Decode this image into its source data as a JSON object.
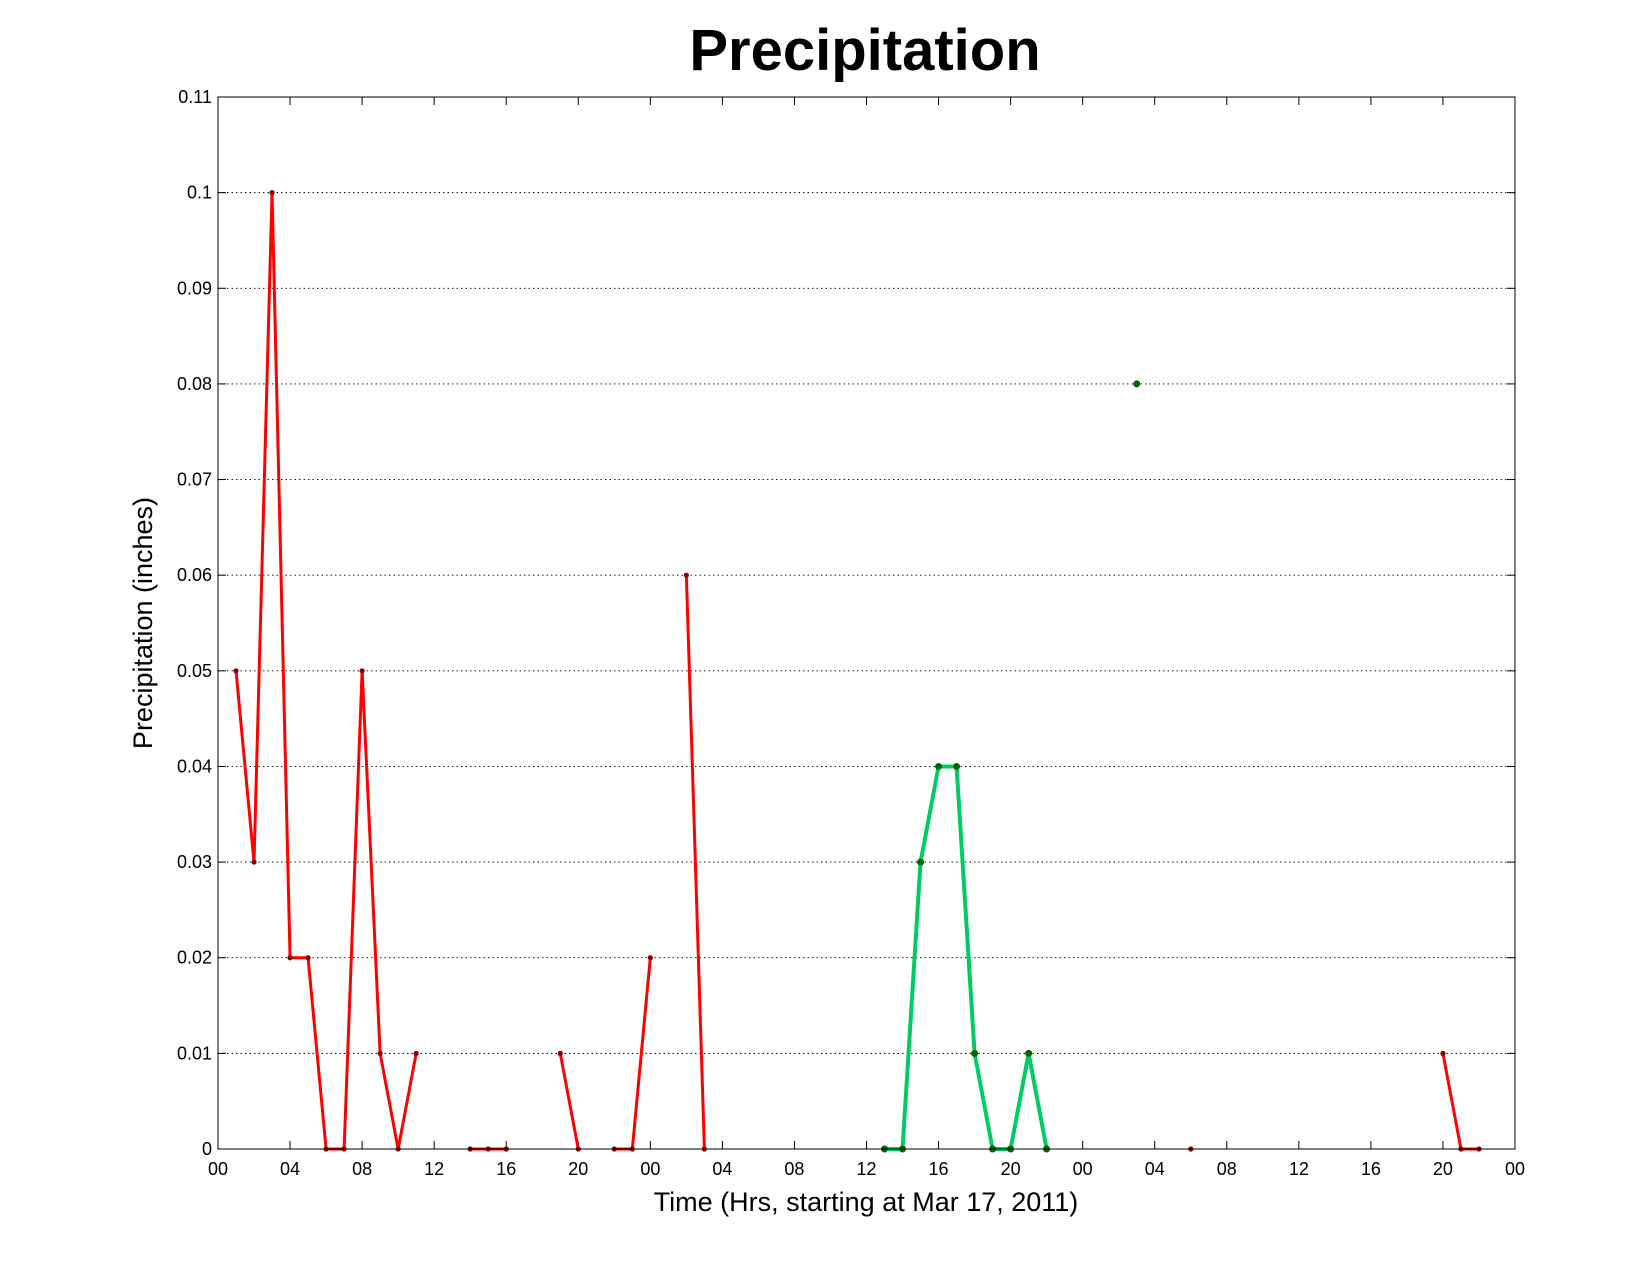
{
  "chart_data": {
    "type": "line",
    "title": "Precipitation",
    "xlabel": "Time (Hrs, starting at Mar 17, 2011)",
    "ylabel": "Precipitation (inches)",
    "xlim_hours": [
      0,
      72
    ],
    "ylim": [
      0,
      0.11
    ],
    "grid": "y-dotted",
    "yticks": [
      0,
      0.01,
      0.02,
      0.03,
      0.04,
      0.05,
      0.06,
      0.07,
      0.08,
      0.09,
      0.1,
      0.11
    ],
    "ytick_labels": [
      "0",
      "0.01",
      "0.02",
      "0.03",
      "0.04",
      "0.05",
      "0.06",
      "0.07",
      "0.08",
      "0.09",
      "0.1",
      "0.11"
    ],
    "xticks_hours": [
      0,
      4,
      8,
      12,
      16,
      20,
      24,
      28,
      32,
      36,
      40,
      44,
      48,
      52,
      56,
      60,
      64,
      68,
      72
    ],
    "xtick_labels": [
      "00",
      "04",
      "08",
      "12",
      "16",
      "20",
      "00",
      "04",
      "08",
      "12",
      "16",
      "20",
      "00",
      "04",
      "08",
      "12",
      "16",
      "20",
      "00"
    ],
    "series": [
      {
        "color": "#ff0000",
        "marker_color": "#8b0000",
        "segments": [
          [
            [
              1,
              0.05
            ],
            [
              2,
              0.03
            ],
            [
              3,
              0.1
            ],
            [
              4,
              0.02
            ],
            [
              5,
              0.02
            ],
            [
              6,
              0
            ],
            [
              7,
              0
            ],
            [
              8,
              0.05
            ],
            [
              9,
              0.01
            ],
            [
              10,
              0
            ],
            [
              11,
              0.01
            ]
          ],
          [
            [
              14,
              0
            ],
            [
              15,
              0
            ],
            [
              16,
              0
            ]
          ],
          [
            [
              19,
              0.01
            ],
            [
              20,
              0
            ]
          ],
          [
            [
              22,
              0
            ],
            [
              23,
              0
            ],
            [
              24,
              0.02
            ]
          ],
          [
            [
              26,
              0.06
            ],
            [
              27,
              0
            ]
          ],
          [
            [
              54,
              0
            ]
          ],
          [
            [
              68,
              0.01
            ],
            [
              69,
              0
            ],
            [
              70,
              0
            ]
          ]
        ]
      },
      {
        "color": "#00cc66",
        "marker_color": "#006400",
        "segments": [
          [
            [
              37,
              0
            ],
            [
              38,
              0
            ],
            [
              39,
              0.03
            ],
            [
              40,
              0.04
            ],
            [
              41,
              0.04
            ],
            [
              42,
              0.01
            ],
            [
              43,
              0
            ],
            [
              44,
              0
            ],
            [
              45,
              0.01
            ],
            [
              46,
              0
            ]
          ],
          [
            [
              51,
              0.08
            ]
          ]
        ]
      }
    ]
  }
}
